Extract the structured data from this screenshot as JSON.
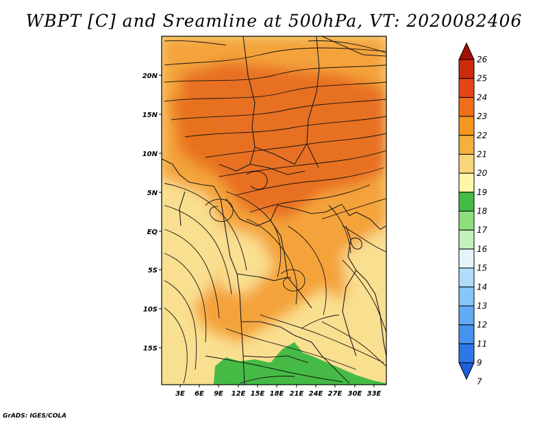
{
  "title": "WBPT [C] and Sreamline at 500hPa, VT: 2020082406",
  "credit": "GrADS: IGES/COLA",
  "lat_labels": [
    "20N",
    "15N",
    "10N",
    "5N",
    "EQ",
    "5S",
    "10S",
    "15S"
  ],
  "lon_labels": [
    "3E",
    "6E",
    "9E",
    "12E",
    "15E",
    "18E",
    "21E",
    "24E",
    "27E",
    "30E",
    "33E"
  ],
  "colorbar": {
    "levels": [
      "7",
      "9",
      "11",
      "12",
      "13",
      "14",
      "15",
      "16",
      "17",
      "18",
      "19",
      "20",
      "21",
      "22",
      "23",
      "24",
      "25",
      "26"
    ],
    "colors": [
      "#1c5fdc",
      "#2d78e6",
      "#4593ee",
      "#62abf4",
      "#86c6f8",
      "#b2ddfa",
      "#e3f5fb",
      "#c3f0bd",
      "#8ee07e",
      "#44bb44",
      "#fff6a8",
      "#fad67a",
      "#f5b13e",
      "#f5961e",
      "#f06e18",
      "#e64514",
      "#cc2a0d",
      "#a01000"
    ]
  },
  "colors": {
    "land_pale": "#f9df90",
    "land_orange": "#f4a33b",
    "land_deep": "#e86f24",
    "land_green": "#45bb45"
  }
}
